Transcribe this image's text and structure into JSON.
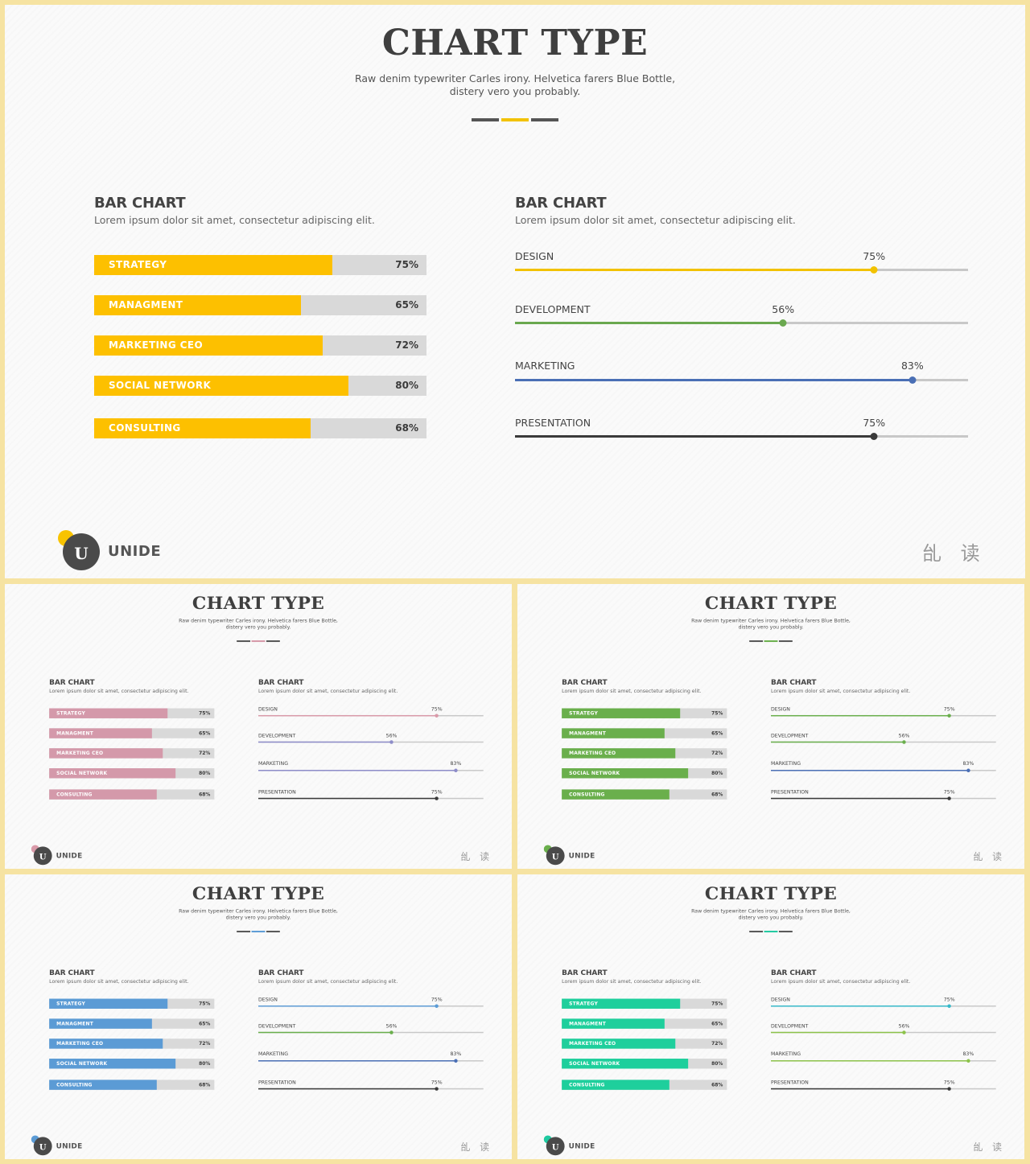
{
  "title": "CHART TYPE",
  "subtitle_line1": "Raw denim typewriter Carles irony. Helvetica farers Blue Bottle,",
  "subtitle_line2": "distery vero you probably.",
  "brand": "UNIDE",
  "signature": "乨 读",
  "logo_letter": "U",
  "left_panel": {
    "title": "BAR CHART",
    "desc": "Lorem ipsum dolor sit amet, consectetur adipiscing elit."
  },
  "right_panel": {
    "title": "BAR CHART",
    "desc": "Lorem ipsum dolor sit amet, consectetur adipiscing elit."
  },
  "chart_data": [
    {
      "type": "bar",
      "orientation": "horizontal",
      "categories": [
        "STRATEGY",
        "MANAGMENT",
        "MARKETING CEO",
        "SOCIAL NETWORK",
        "CONSULTING"
      ],
      "values": [
        75,
        65,
        72,
        80,
        68
      ],
      "value_labels": [
        "75%",
        "65%",
        "72%",
        "80%",
        "68%"
      ],
      "ylim": [
        0,
        100
      ]
    },
    {
      "type": "bar",
      "orientation": "horizontal",
      "style": "line-slider",
      "categories": [
        "DESIGN",
        "DEVELOPMENT",
        "MARKETING",
        "PRESENTATION"
      ],
      "values": [
        75,
        56,
        83,
        75
      ],
      "value_labels": [
        "75%",
        "56%",
        "83%",
        "75%"
      ],
      "ylim": [
        0,
        100
      ]
    }
  ],
  "slides": [
    {
      "divider_color": "#f2c200",
      "bar_color": "#fdc000",
      "line_colors": [
        "#f2c200",
        "#6aa84f",
        "#4a6fb5",
        "#3a3a3a"
      ],
      "logo_dot_color": "#f8c300"
    },
    {
      "divider_color": "#d698a8",
      "bar_color": "#d499aa",
      "line_colors": [
        "#d99aa9",
        "#8d8cc9",
        "#8d8cc9",
        "#3a3a3a"
      ],
      "logo_dot_color": "#d99aa9"
    },
    {
      "divider_color": "#6aaf4c",
      "bar_color": "#6aaf4c",
      "line_colors": [
        "#6aaf4c",
        "#6aaf4c",
        "#4a6fb5",
        "#3a3a3a"
      ],
      "logo_dot_color": "#6aaf4c"
    },
    {
      "divider_color": "#5b9bd5",
      "bar_color": "#5b9bd5",
      "line_colors": [
        "#5b9bd5",
        "#6aaf4c",
        "#4a6fb5",
        "#3a3a3a"
      ],
      "logo_dot_color": "#5b9bd5"
    },
    {
      "divider_color": "#1ec9a0",
      "bar_color": "#1ecf9c",
      "line_colors": [
        "#35b9c9",
        "#8cc34a",
        "#8cc34a",
        "#3a3a3a"
      ],
      "logo_dot_color": "#1ec9a0"
    }
  ]
}
